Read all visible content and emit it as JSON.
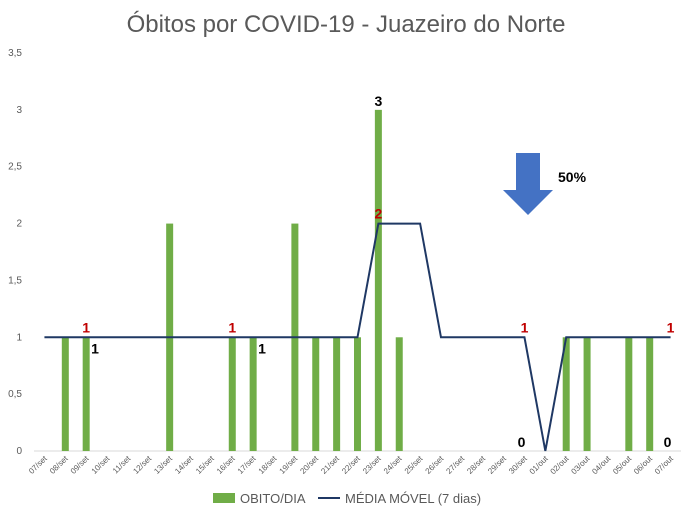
{
  "chart_data": {
    "type": "bar",
    "title": "Óbitos por COVID-19 - Juazeiro do Norte",
    "xlabel": "",
    "ylabel": "",
    "ylim": [
      0,
      3.5
    ],
    "yticks": [
      "0",
      "0,5",
      "1",
      "1,5",
      "2",
      "2,5",
      "3",
      "3,5"
    ],
    "grid": false,
    "legend_position": "bottom",
    "categories": [
      "07/set",
      "08/set",
      "09/set",
      "10/set",
      "11/set",
      "12/set",
      "13/set",
      "14/set",
      "15/set",
      "16/set",
      "17/set",
      "18/set",
      "19/set",
      "20/set",
      "21/set",
      "22/set",
      "23/set",
      "24/set",
      "25/set",
      "26/set",
      "27/set",
      "28/set",
      "29/set",
      "30/set",
      "01/out",
      "02/out",
      "03/out",
      "04/out",
      "05/out",
      "06/out",
      "07/out"
    ],
    "series": [
      {
        "name": "OBITO/DIA",
        "kind": "bar",
        "color": "#70ad47",
        "values": [
          0,
          1,
          1,
          0,
          0,
          0,
          2,
          0,
          0,
          1,
          1,
          0,
          2,
          1,
          1,
          1,
          3,
          1,
          0,
          0,
          0,
          0,
          0,
          0,
          0,
          1,
          1,
          0,
          1,
          1,
          0
        ]
      },
      {
        "name": "MÉDIA MÓVEL (7 dias)",
        "kind": "line",
        "color": "#1f3864",
        "values": [
          1,
          1,
          1,
          1,
          1,
          1,
          1,
          1,
          1,
          1,
          1,
          1,
          1,
          1,
          1,
          1,
          2,
          2,
          2,
          1,
          1,
          1,
          1,
          1,
          0,
          1,
          1,
          1,
          1,
          1,
          1
        ]
      }
    ],
    "data_labels": [
      {
        "text": "1",
        "index": 2,
        "value": 1,
        "color": "#c00000",
        "ref": "line"
      },
      {
        "text": "1",
        "index": 2,
        "value": 1,
        "color": "#000000",
        "ref": "bar"
      },
      {
        "text": "1",
        "index": 9,
        "value": 1,
        "color": "#c00000",
        "ref": "line"
      },
      {
        "text": "1",
        "index": 10,
        "value": 1,
        "color": "#000000",
        "ref": "bar"
      },
      {
        "text": "3",
        "index": 16,
        "value": 3,
        "color": "#000000",
        "ref": "bar"
      },
      {
        "text": "2",
        "index": 16,
        "value": 2,
        "color": "#c00000",
        "ref": "line"
      },
      {
        "text": "1",
        "index": 23,
        "value": 1,
        "color": "#c00000",
        "ref": "line"
      },
      {
        "text": "0",
        "index": 23,
        "value": 0,
        "color": "#000000",
        "ref": "bar"
      },
      {
        "text": "1",
        "index": 30,
        "value": 1,
        "color": "#c00000",
        "ref": "line"
      },
      {
        "text": "0",
        "index": 30,
        "value": 0,
        "color": "#000000",
        "ref": "bar"
      }
    ],
    "annotation": {
      "text": "50%",
      "icon": "down-arrow-icon",
      "icon_color": "#4472c4"
    }
  }
}
